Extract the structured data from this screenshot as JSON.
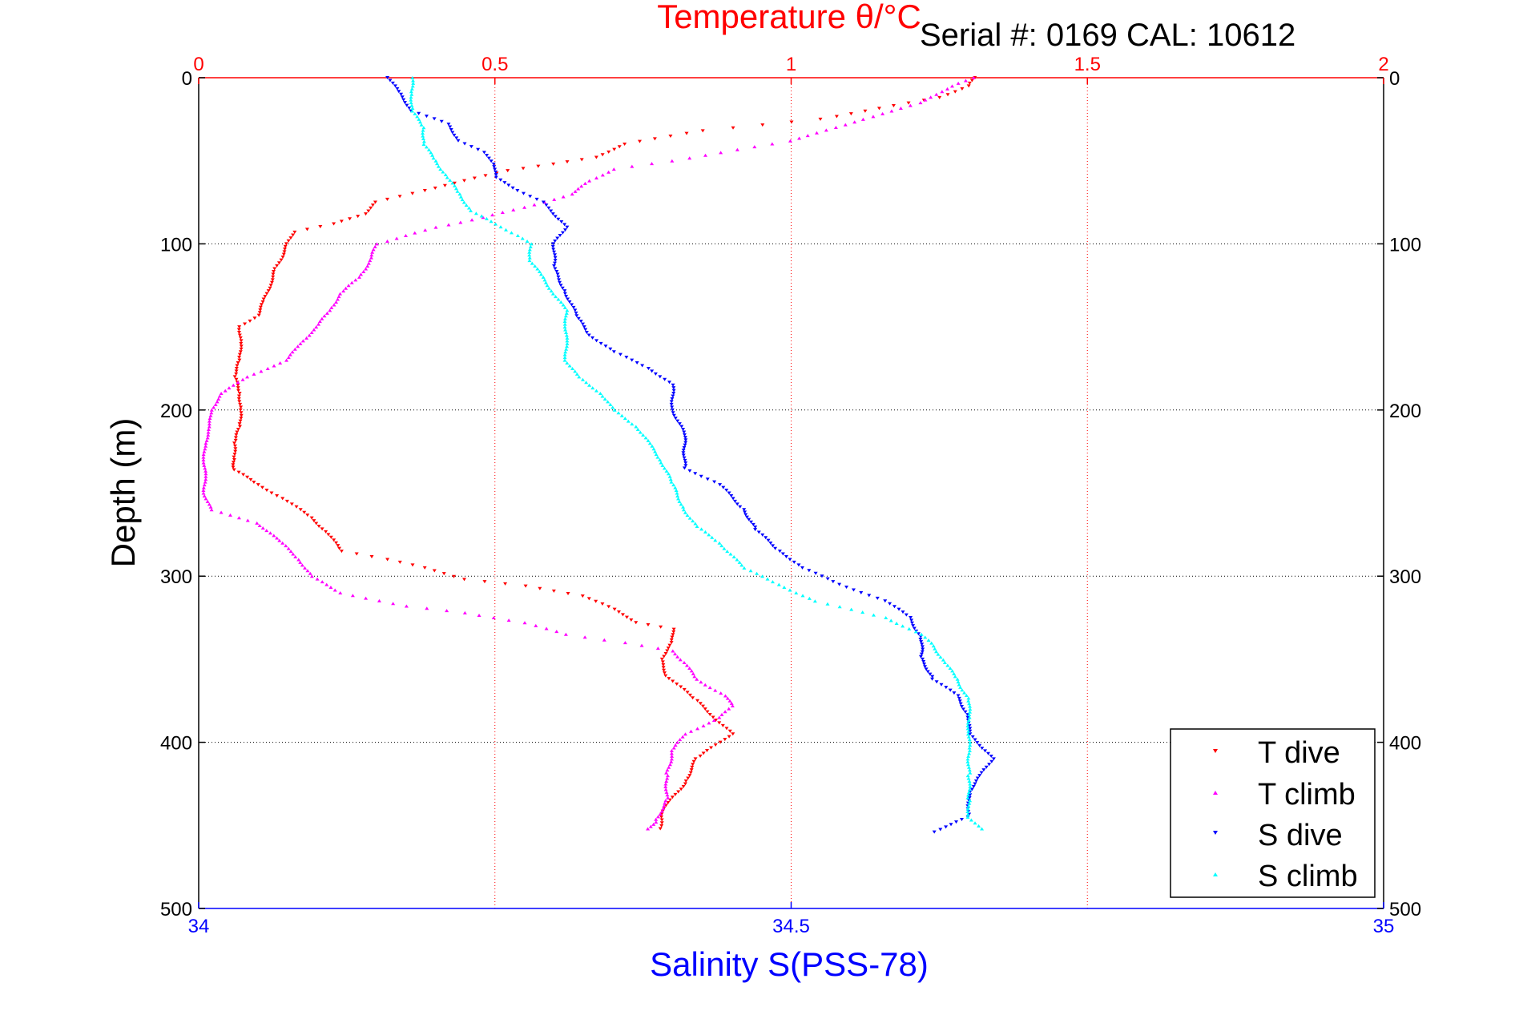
{
  "header": {
    "temperature_axis_title": "Temperature θ/°C",
    "serial_text": "Serial #: 0169 CAL: 10612"
  },
  "chart_data": {
    "type": "scatter",
    "ylabel": "Depth (m)",
    "xlabel": "Salinity S(PSS-78)",
    "x2label": "Temperature θ/°C",
    "ylim": [
      0,
      500
    ],
    "y_reversed": true,
    "xlim_salinity": [
      34,
      35
    ],
    "xlim_temperature": [
      0,
      2
    ],
    "y_ticks": [
      "0",
      "100",
      "200",
      "300",
      "400",
      "500"
    ],
    "x_ticks_salinity": [
      "34",
      "34.5",
      "35"
    ],
    "x_ticks_temperature": [
      "0",
      "0.5",
      "1",
      "1.5",
      "2"
    ],
    "grid": true,
    "legend_position": "bottom-right",
    "colors": {
      "T dive": "#ff0000",
      "T climb": "#ff00ff",
      "S dive": "#0000ff",
      "S climb": "#00ffff",
      "temperature_axis": "#ff0000",
      "salinity_axis": "#0000ff"
    },
    "series": [
      {
        "name": "T dive",
        "axis": "temperature",
        "marker": "triangle-down",
        "points": [
          [
            1.31,
            0
          ],
          [
            1.3,
            5
          ],
          [
            1.25,
            12
          ],
          [
            1.05,
            25
          ],
          [
            0.85,
            32
          ],
          [
            0.72,
            40
          ],
          [
            0.67,
            48
          ],
          [
            0.6,
            52
          ],
          [
            0.52,
            56
          ],
          [
            0.45,
            62
          ],
          [
            0.38,
            68
          ],
          [
            0.3,
            75
          ],
          [
            0.28,
            82
          ],
          [
            0.23,
            88
          ],
          [
            0.16,
            93
          ],
          [
            0.15,
            100
          ],
          [
            0.14,
            108
          ],
          [
            0.13,
            115
          ],
          [
            0.12,
            125
          ],
          [
            0.11,
            135
          ],
          [
            0.1,
            143
          ],
          [
            0.07,
            150
          ],
          [
            0.07,
            160
          ],
          [
            0.07,
            170
          ],
          [
            0.06,
            180
          ],
          [
            0.07,
            190
          ],
          [
            0.07,
            200
          ],
          [
            0.07,
            210
          ],
          [
            0.06,
            220
          ],
          [
            0.06,
            230
          ],
          [
            0.06,
            236
          ],
          [
            0.1,
            245
          ],
          [
            0.15,
            255
          ],
          [
            0.19,
            265
          ],
          [
            0.22,
            275
          ],
          [
            0.24,
            285
          ],
          [
            0.32,
            290
          ],
          [
            0.38,
            295
          ],
          [
            0.45,
            302
          ],
          [
            0.55,
            306
          ],
          [
            0.65,
            312
          ],
          [
            0.7,
            320
          ],
          [
            0.74,
            328
          ],
          [
            0.8,
            332
          ],
          [
            0.8,
            340
          ],
          [
            0.78,
            350
          ],
          [
            0.79,
            360
          ],
          [
            0.84,
            375
          ],
          [
            0.87,
            385
          ],
          [
            0.9,
            395
          ],
          [
            0.84,
            410
          ],
          [
            0.82,
            425
          ],
          [
            0.79,
            438
          ],
          [
            0.78,
            445
          ],
          [
            0.78,
            452
          ]
        ]
      },
      {
        "name": "T climb",
        "axis": "temperature",
        "marker": "triangle-up",
        "points": [
          [
            1.31,
            0
          ],
          [
            1.27,
            5
          ],
          [
            1.22,
            15
          ],
          [
            1.12,
            25
          ],
          [
            1.0,
            38
          ],
          [
            0.88,
            45
          ],
          [
            0.8,
            50
          ],
          [
            0.7,
            55
          ],
          [
            0.66,
            62
          ],
          [
            0.63,
            70
          ],
          [
            0.55,
            78
          ],
          [
            0.48,
            84
          ],
          [
            0.4,
            90
          ],
          [
            0.35,
            95
          ],
          [
            0.3,
            100
          ],
          [
            0.29,
            110
          ],
          [
            0.27,
            120
          ],
          [
            0.24,
            130
          ],
          [
            0.22,
            140
          ],
          [
            0.2,
            150
          ],
          [
            0.17,
            160
          ],
          [
            0.15,
            170
          ],
          [
            0.08,
            180
          ],
          [
            0.04,
            190
          ],
          [
            0.02,
            200
          ],
          [
            0.02,
            210
          ],
          [
            0.01,
            220
          ],
          [
            0.01,
            230
          ],
          [
            0.01,
            240
          ],
          [
            0.01,
            250
          ],
          [
            0.02,
            260
          ],
          [
            0.1,
            268
          ],
          [
            0.14,
            280
          ],
          [
            0.17,
            290
          ],
          [
            0.19,
            300
          ],
          [
            0.24,
            310
          ],
          [
            0.35,
            318
          ],
          [
            0.45,
            322
          ],
          [
            0.55,
            328
          ],
          [
            0.62,
            335
          ],
          [
            0.72,
            340
          ],
          [
            0.8,
            345
          ],
          [
            0.82,
            352
          ],
          [
            0.84,
            362
          ],
          [
            0.89,
            372
          ],
          [
            0.9,
            378
          ],
          [
            0.88,
            385
          ],
          [
            0.82,
            395
          ],
          [
            0.8,
            405
          ],
          [
            0.79,
            420
          ],
          [
            0.79,
            435
          ],
          [
            0.77,
            448
          ],
          [
            0.76,
            452
          ]
        ]
      },
      {
        "name": "S dive",
        "axis": "salinity",
        "marker": "triangle-down",
        "points": [
          [
            34.16,
            0
          ],
          [
            34.17,
            10
          ],
          [
            34.18,
            20
          ],
          [
            34.21,
            28
          ],
          [
            34.22,
            38
          ],
          [
            34.24,
            45
          ],
          [
            34.25,
            52
          ],
          [
            34.25,
            60
          ],
          [
            34.27,
            68
          ],
          [
            34.29,
            75
          ],
          [
            34.3,
            82
          ],
          [
            34.31,
            90
          ],
          [
            34.3,
            100
          ],
          [
            34.3,
            115
          ],
          [
            34.31,
            130
          ],
          [
            34.32,
            145
          ],
          [
            34.33,
            155
          ],
          [
            34.35,
            165
          ],
          [
            34.38,
            175
          ],
          [
            34.4,
            185
          ],
          [
            34.4,
            200
          ],
          [
            34.41,
            215
          ],
          [
            34.41,
            235
          ],
          [
            34.44,
            245
          ],
          [
            34.46,
            260
          ],
          [
            34.47,
            272
          ],
          [
            34.49,
            285
          ],
          [
            34.51,
            295
          ],
          [
            34.54,
            305
          ],
          [
            34.58,
            315
          ],
          [
            34.6,
            325
          ],
          [
            34.61,
            338
          ],
          [
            34.61,
            350
          ],
          [
            34.62,
            362
          ],
          [
            34.64,
            372
          ],
          [
            34.65,
            385
          ],
          [
            34.65,
            395
          ],
          [
            34.66,
            402
          ],
          [
            34.67,
            410
          ],
          [
            34.66,
            420
          ],
          [
            34.65,
            430
          ],
          [
            34.65,
            445
          ],
          [
            34.62,
            454
          ]
        ]
      },
      {
        "name": "S climb",
        "axis": "salinity",
        "marker": "triangle-up",
        "points": [
          [
            34.18,
            0
          ],
          [
            34.18,
            10
          ],
          [
            34.18,
            20
          ],
          [
            34.19,
            30
          ],
          [
            34.19,
            40
          ],
          [
            34.2,
            50
          ],
          [
            34.21,
            60
          ],
          [
            34.22,
            70
          ],
          [
            34.23,
            80
          ],
          [
            34.25,
            88
          ],
          [
            34.27,
            95
          ],
          [
            34.28,
            100
          ],
          [
            34.28,
            110
          ],
          [
            34.29,
            120
          ],
          [
            34.3,
            130
          ],
          [
            34.31,
            140
          ],
          [
            34.31,
            150
          ],
          [
            34.31,
            160
          ],
          [
            34.31,
            170
          ],
          [
            34.32,
            180
          ],
          [
            34.34,
            190
          ],
          [
            34.35,
            200
          ],
          [
            34.37,
            210
          ],
          [
            34.38,
            220
          ],
          [
            34.39,
            230
          ],
          [
            34.4,
            245
          ],
          [
            34.41,
            260
          ],
          [
            34.42,
            270
          ],
          [
            34.44,
            280
          ],
          [
            34.46,
            295
          ],
          [
            34.49,
            305
          ],
          [
            34.52,
            315
          ],
          [
            34.58,
            325
          ],
          [
            34.61,
            335
          ],
          [
            34.62,
            342
          ],
          [
            34.63,
            352
          ],
          [
            34.64,
            362
          ],
          [
            34.65,
            375
          ],
          [
            34.65,
            385
          ],
          [
            34.65,
            395
          ],
          [
            34.65,
            405
          ],
          [
            34.65,
            420
          ],
          [
            34.65,
            435
          ],
          [
            34.65,
            445
          ],
          [
            34.66,
            452
          ]
        ]
      }
    ]
  }
}
